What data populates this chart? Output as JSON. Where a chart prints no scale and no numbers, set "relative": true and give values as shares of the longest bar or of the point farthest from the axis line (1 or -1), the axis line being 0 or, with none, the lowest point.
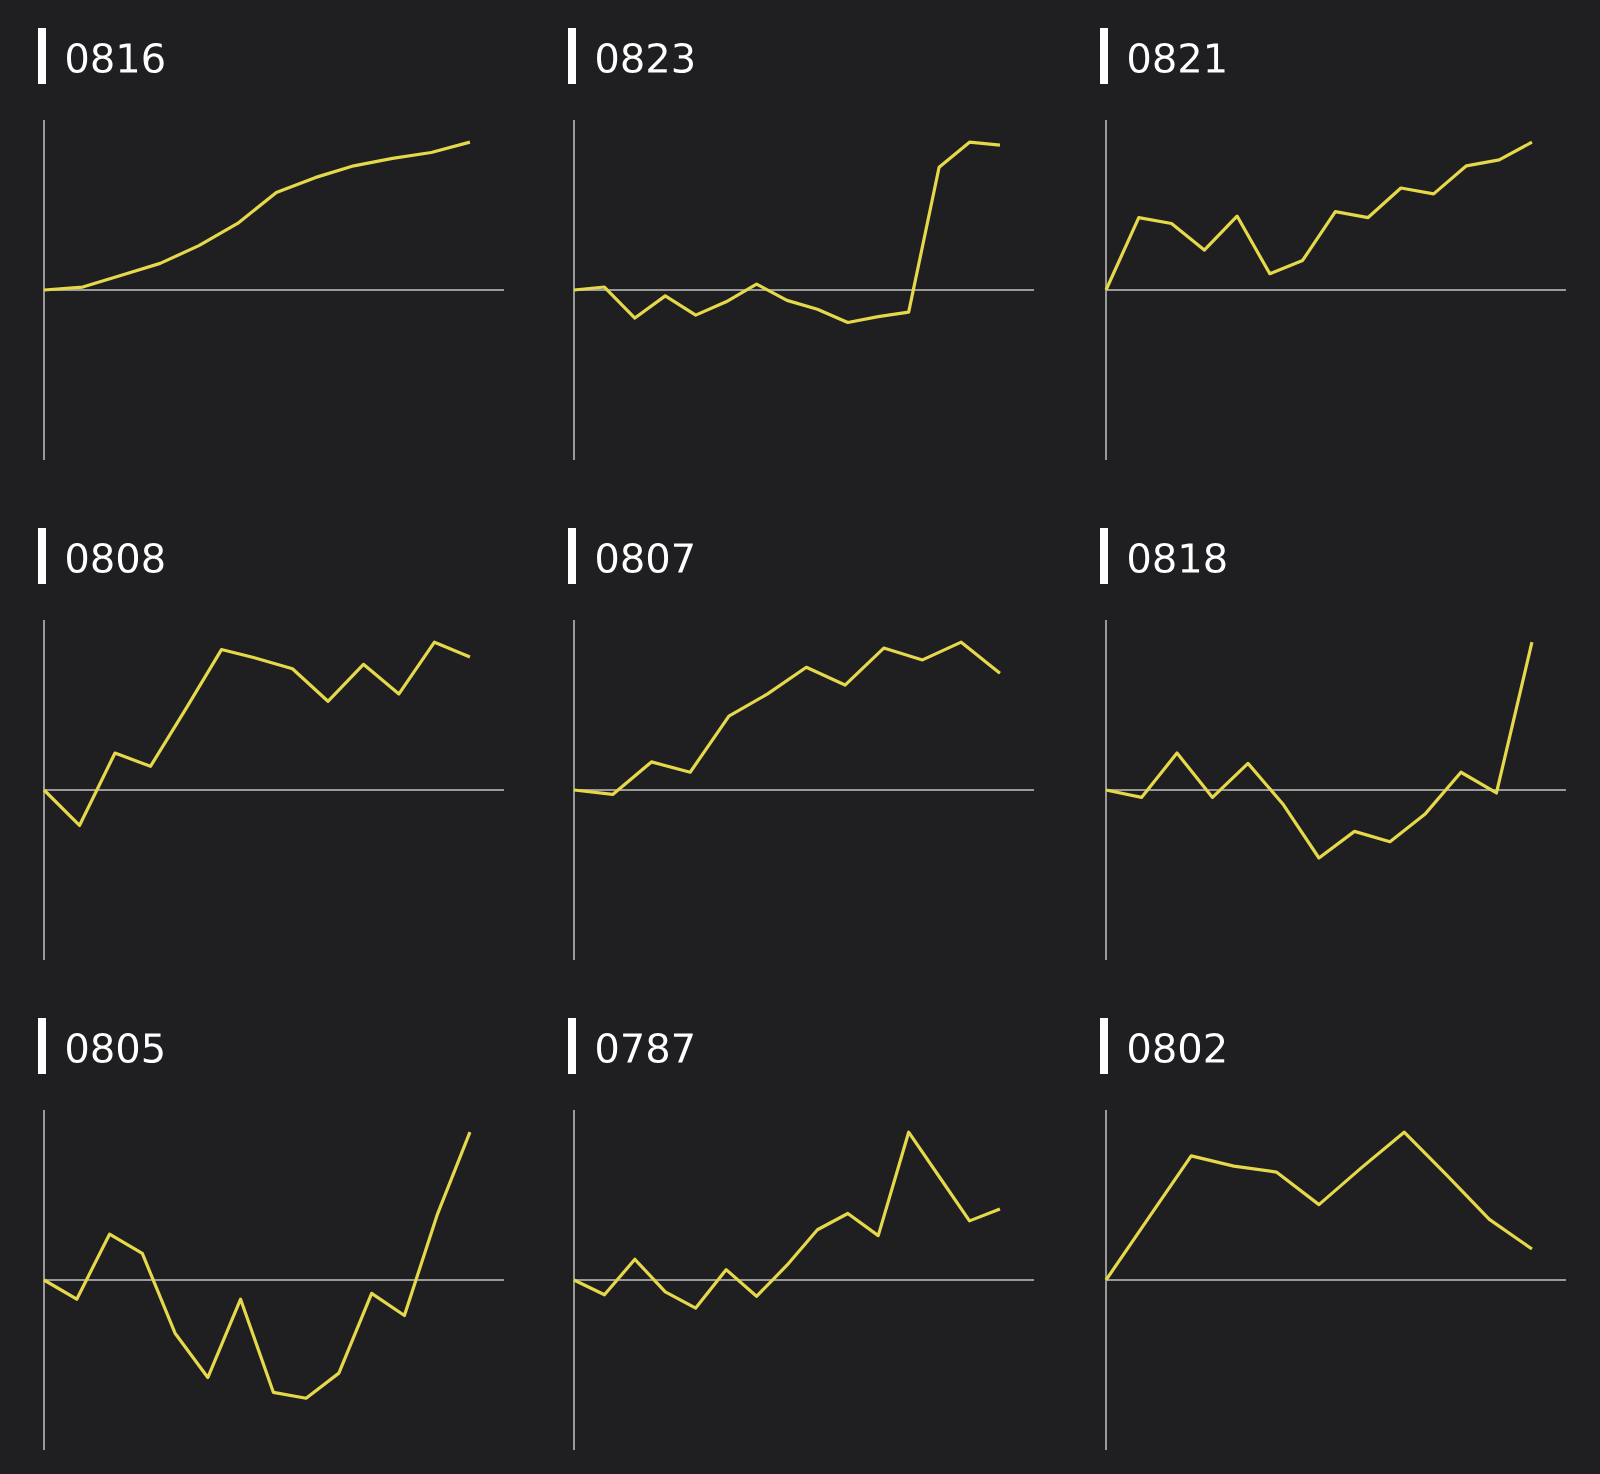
{
  "chart_data": [
    {
      "type": "line",
      "title": "0816",
      "relative": true,
      "color": "#e5d84a",
      "categories": [
        null,
        null,
        null,
        null,
        null,
        null,
        null,
        null,
        null,
        null,
        null,
        null
      ],
      "values": [
        0,
        0.02,
        0.1,
        0.18,
        0.3,
        0.45,
        0.66,
        0.76,
        0.84,
        0.89,
        0.93,
        1
      ]
    },
    {
      "type": "line",
      "title": "0823",
      "relative": true,
      "color": "#e5d84a",
      "categories": [
        null,
        null,
        null,
        null,
        null,
        null,
        null,
        null,
        null,
        null,
        null,
        null,
        null,
        null,
        null
      ],
      "values": [
        0,
        0.02,
        -0.19,
        -0.04,
        -0.17,
        -0.08,
        0.04,
        -0.07,
        -0.13,
        -0.22,
        -0.18,
        -0.15,
        0.83,
        1,
        0.98
      ]
    },
    {
      "type": "line",
      "title": "0821",
      "relative": true,
      "color": "#e5d84a",
      "categories": [
        null,
        null,
        null,
        null,
        null,
        null,
        null,
        null,
        null,
        null,
        null,
        null,
        null,
        null
      ],
      "values": [
        0,
        0.49,
        0.45,
        0.27,
        0.5,
        0.11,
        0.2,
        0.53,
        0.49,
        0.69,
        0.65,
        0.84,
        0.88,
        1
      ]
    },
    {
      "type": "line",
      "title": "0808",
      "relative": true,
      "color": "#e5d84a",
      "categories": [
        null,
        null,
        null,
        null,
        null,
        null,
        null,
        null,
        null,
        null,
        null,
        null,
        null
      ],
      "values": [
        0,
        -0.24,
        0.25,
        0.16,
        0.55,
        0.95,
        0.89,
        0.82,
        0.6,
        0.85,
        0.65,
        1,
        0.9
      ]
    },
    {
      "type": "line",
      "title": "0807",
      "relative": true,
      "color": "#e5d84a",
      "categories": [
        null,
        null,
        null,
        null,
        null,
        null,
        null,
        null,
        null,
        null,
        null,
        null
      ],
      "values": [
        0,
        -0.03,
        0.19,
        0.12,
        0.5,
        0.65,
        0.83,
        0.71,
        0.96,
        0.88,
        1,
        0.79
      ]
    },
    {
      "type": "line",
      "title": "0818",
      "relative": true,
      "color": "#e5d84a",
      "categories": [
        null,
        null,
        null,
        null,
        null,
        null,
        null,
        null,
        null,
        null,
        null,
        null,
        null
      ],
      "values": [
        0,
        -0.05,
        0.25,
        -0.05,
        0.18,
        -0.1,
        -0.46,
        -0.28,
        -0.35,
        -0.16,
        0.12,
        -0.02,
        1
      ]
    },
    {
      "type": "line",
      "title": "0805",
      "relative": true,
      "color": "#e5d84a",
      "categories": [
        null,
        null,
        null,
        null,
        null,
        null,
        null,
        null,
        null,
        null,
        null,
        null,
        null,
        null
      ],
      "values": [
        0,
        -0.13,
        0.31,
        0.18,
        -0.36,
        -0.66,
        -0.13,
        -0.76,
        -0.8,
        -0.63,
        -0.09,
        -0.24,
        0.44,
        1
      ]
    },
    {
      "type": "line",
      "title": "0787",
      "relative": true,
      "color": "#e5d84a",
      "categories": [
        null,
        null,
        null,
        null,
        null,
        null,
        null,
        null,
        null,
        null,
        null,
        null,
        null,
        null,
        null
      ],
      "values": [
        0,
        -0.1,
        0.14,
        -0.08,
        -0.19,
        0.07,
        -0.11,
        0.1,
        0.34,
        0.45,
        0.3,
        1,
        0.7,
        0.4,
        0.48
      ]
    },
    {
      "type": "line",
      "title": "0802",
      "relative": true,
      "color": "#e5d84a",
      "categories": [
        null,
        null,
        null,
        null,
        null,
        null,
        null,
        null,
        null,
        null,
        null
      ],
      "values": [
        0,
        0.42,
        0.84,
        0.77,
        0.73,
        0.51,
        0.76,
        1,
        0.71,
        0.41,
        0.21
      ]
    }
  ]
}
